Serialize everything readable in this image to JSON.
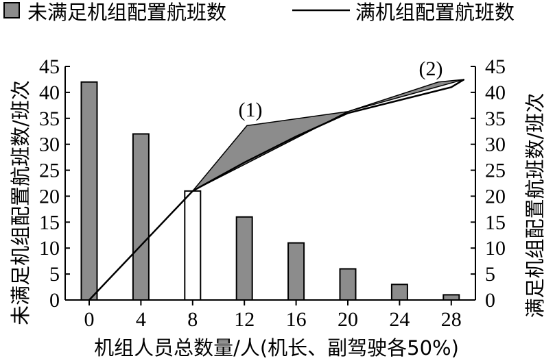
{
  "chart_data": {
    "type": "bar",
    "xlabel": "机组人员总数量/人(机长、副驾驶各50%)",
    "ylabel_left": "未满足机组配置航班数/班次",
    "ylabel_right": "满足机组配置航班数/班次",
    "ylim": [
      0,
      45
    ],
    "y_ticks": [
      0,
      5,
      10,
      15,
      20,
      25,
      30,
      35,
      40,
      45
    ],
    "categories": [
      0,
      4,
      8,
      12,
      16,
      20,
      24,
      28
    ],
    "legend": {
      "bar_label": "未满足机组配置航班数",
      "line_label": "满机组配置航班数",
      "position": "top"
    },
    "series": [
      {
        "name": "未满足机组配置航班数",
        "kind": "bar",
        "color": "#8c8c8c",
        "highlight_color": "#ffffff",
        "highlight_index": 2,
        "values": [
          42,
          32,
          21,
          16,
          11,
          6,
          3,
          1
        ]
      },
      {
        "name": "满机组配置航班数",
        "kind": "line",
        "axis": "right",
        "color": "#000000",
        "x": [
          0,
          4,
          8,
          12,
          16,
          20,
          24,
          28,
          29
        ],
        "values": [
          0,
          10.5,
          21,
          26.5,
          31.5,
          36,
          38.5,
          41,
          42.5
        ]
      }
    ],
    "shaded_regions": [
      {
        "label": "(1)",
        "color": "#8c8c8c",
        "x": [
          8,
          12.2,
          20
        ],
        "values": [
          21,
          33.6,
          36.3
        ]
      },
      {
        "label": "(2)",
        "color": "#8c8c8c",
        "x": [
          20,
          27,
          29
        ],
        "values": [
          36.3,
          42,
          42.5
        ]
      }
    ]
  }
}
